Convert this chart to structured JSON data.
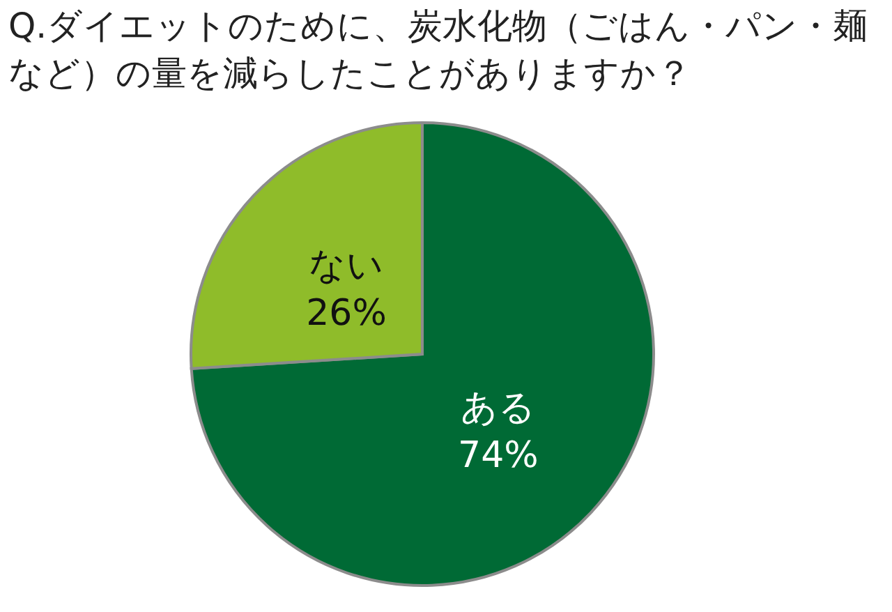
{
  "chart_data": {
    "type": "pie",
    "title": "Q.ダイエットのために、炭水化物（ごはん・パン・麺など）の量を減らしたことがありますか？",
    "categories": [
      "ある",
      "ない"
    ],
    "values": [
      74,
      26
    ],
    "colors": [
      "#006a35",
      "#8fbc2a"
    ],
    "value_labels": [
      "74%",
      "26%"
    ]
  }
}
